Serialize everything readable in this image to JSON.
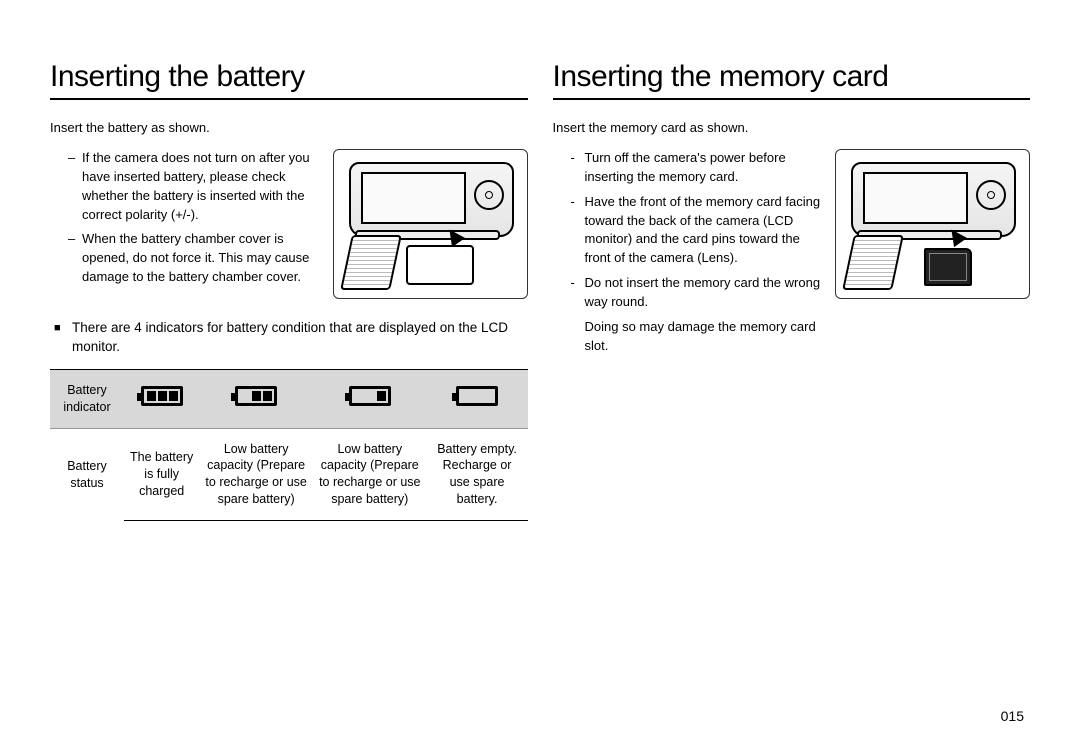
{
  "page_number": "015",
  "left": {
    "heading": "Inserting the battery",
    "intro": "Insert the battery as shown.",
    "bullets": [
      "If the camera does not turn on after you have inserted battery, please check whether the battery is inserted with the correct polarity (+/-).",
      "When the battery chamber cover is opened, do not force it. This may cause damage to the battery chamber cover."
    ],
    "note": "There are 4 indicators for battery condition that are displayed on the LCD monitor.",
    "table": {
      "row_labels": [
        "Battery indicator",
        "Battery status"
      ],
      "icons_bars": [
        3,
        2,
        1,
        0
      ],
      "status": [
        "The battery is fully charged",
        "Low battery capacity (Prepare to recharge or use spare battery)",
        "Low battery capacity (Prepare to recharge or use spare battery)",
        "Battery empty. Recharge or use spare battery."
      ]
    }
  },
  "right": {
    "heading": "Inserting the memory card",
    "intro": "Insert the memory card as shown.",
    "bullets": [
      "Turn off the camera's power before inserting the memory card.",
      "Have the front of the memory card facing toward the back of the camera (LCD monitor) and the card pins toward the front of the camera (Lens).",
      "Do not insert the memory card the wrong way round."
    ],
    "extra": "Doing so may damage the memory card slot."
  }
}
